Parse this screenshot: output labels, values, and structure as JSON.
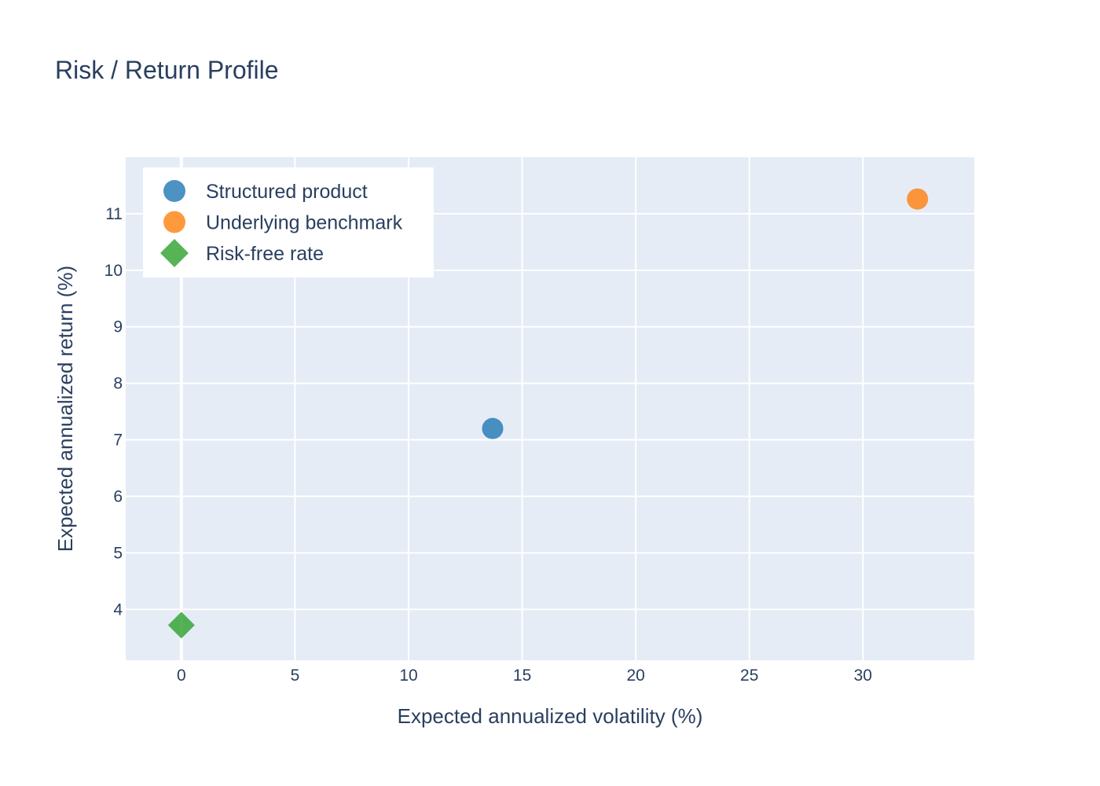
{
  "chart_data": {
    "type": "scatter",
    "title": "Risk / Return Profile",
    "xlabel": "Expected annualized volatility (%)",
    "ylabel": "Expected annualized return (%)",
    "xlim": [
      -2.45,
      34.9
    ],
    "ylim": [
      3.1,
      12.0
    ],
    "x_ticks": [
      0,
      5,
      10,
      15,
      20,
      25,
      30
    ],
    "y_ticks": [
      4,
      5,
      6,
      7,
      8,
      9,
      10,
      11
    ],
    "grid": true,
    "legend_position": "top-left",
    "series": [
      {
        "name": "Structured product",
        "marker": "circle",
        "color": "#1f77b4",
        "points": [
          {
            "x": 13.7,
            "y": 7.2
          }
        ]
      },
      {
        "name": "Underlying benchmark",
        "marker": "circle",
        "color": "#ff7f0e",
        "points": [
          {
            "x": 32.4,
            "y": 11.26
          }
        ]
      },
      {
        "name": "Risk-free rate",
        "marker": "diamond",
        "color": "#2ca02c",
        "points": [
          {
            "x": 0,
            "y": 3.72
          }
        ]
      }
    ]
  },
  "colors": {
    "plot_background": "#e5ecf6",
    "text": "#2a3f5f",
    "grid": "#ffffff"
  }
}
